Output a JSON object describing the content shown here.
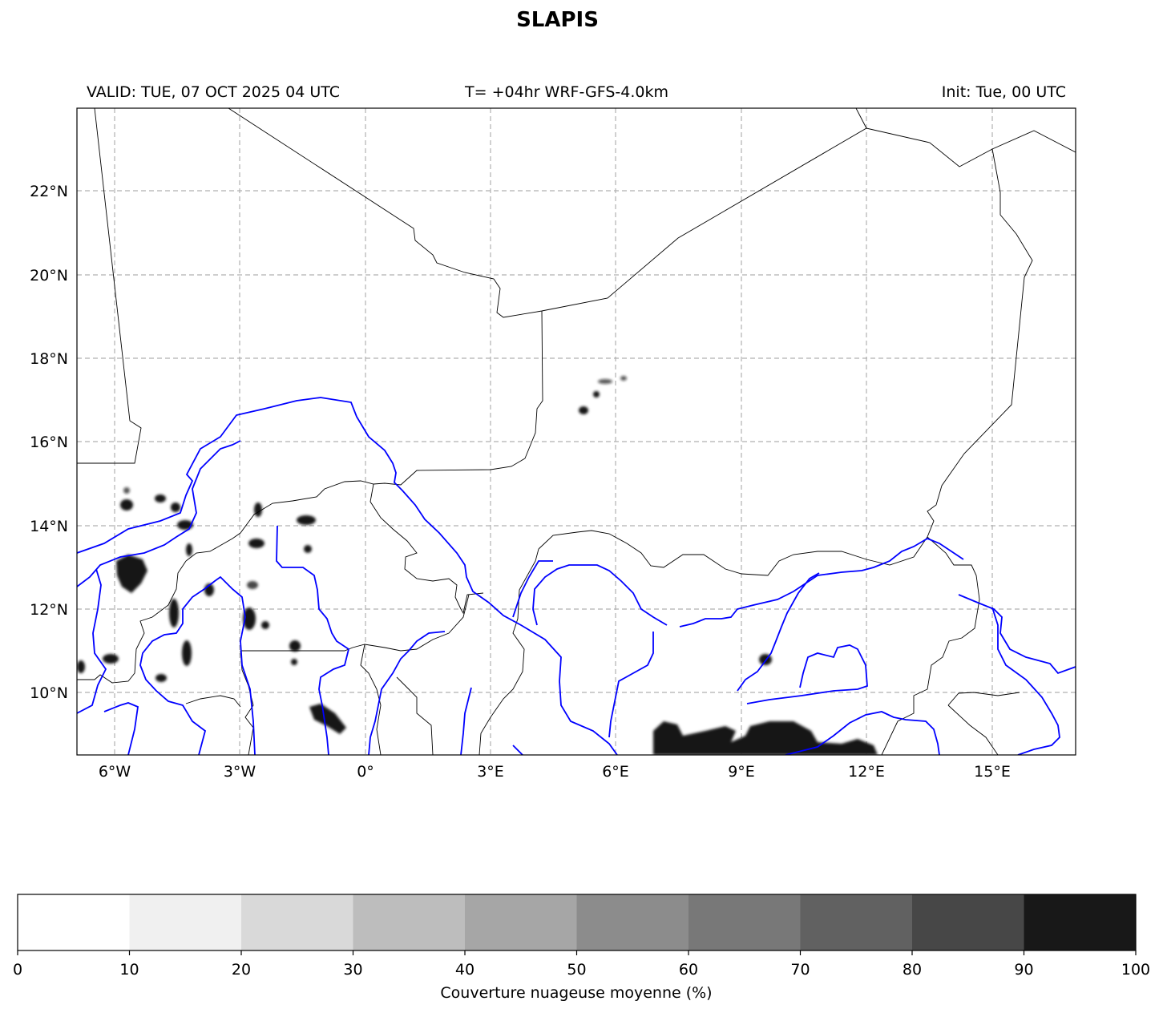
{
  "title": "SLAPIS",
  "header": {
    "valid": "VALID: TUE, 07 OCT 2025 04 UTC",
    "run": "T= +04hr WRF-GFS-4.0km",
    "init": "Init: Tue, 00 UTC"
  },
  "map": {
    "lon_labels": [
      "6°W",
      "3°W",
      "0°",
      "3°E",
      "6°E",
      "9°E",
      "12°E",
      "15°E"
    ],
    "lat_labels": [
      "22°N",
      "20°N",
      "18°N",
      "16°N",
      "14°N",
      "12°N",
      "10°N"
    ],
    "colors": {
      "borders": "#000000",
      "rivers": "#0000ff",
      "grid": "#b0b0b0",
      "cloud": "#161616"
    }
  },
  "colorbar": {
    "ticks": [
      "0",
      "10",
      "20",
      "30",
      "40",
      "50",
      "60",
      "70",
      "80",
      "90",
      "100"
    ],
    "colors": [
      "#ffffff",
      "#f0f0f0",
      "#d9d9d9",
      "#bdbdbd",
      "#a6a6a6",
      "#8c8c8c",
      "#787878",
      "#616161",
      "#474747",
      "#181818"
    ],
    "label": "Couverture nuageuse moyenne (%)"
  }
}
